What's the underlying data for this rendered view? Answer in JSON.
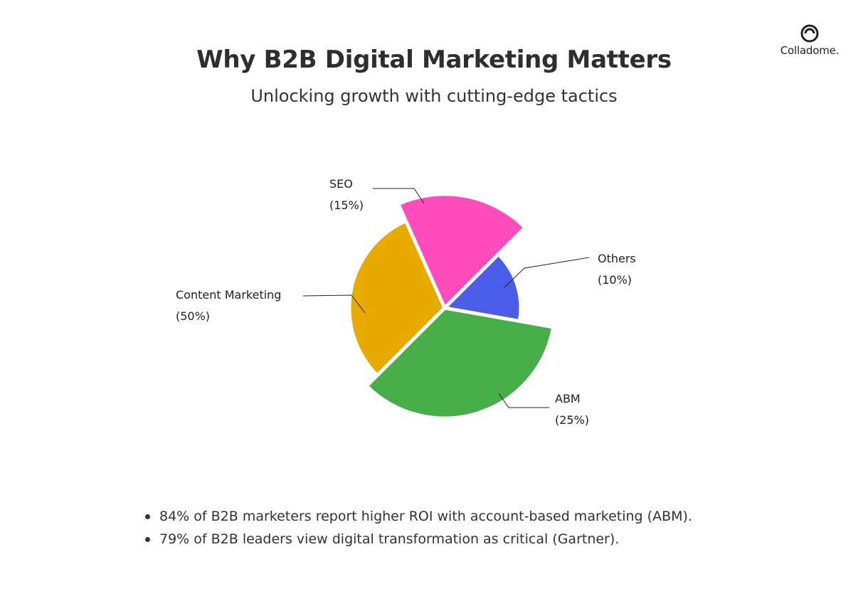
{
  "header": {
    "title": "Why B2B Digital Marketing Matters",
    "subtitle": "Unlocking growth with cutting-edge tactics"
  },
  "brand": {
    "name": "Colladome.",
    "icon": "colladome-logo-icon"
  },
  "chart_data": {
    "type": "pie",
    "title": "Why B2B Digital Marketing Matters",
    "subtitle": "Unlocking growth with cutting-edge tactics",
    "slices": [
      {
        "label": "Content Marketing",
        "value": 50,
        "value_label": "(50%)",
        "color": "#E9AA00",
        "exploded": true
      },
      {
        "label": "SEO",
        "value": 15,
        "value_label": "(15%)",
        "color": "#FF4CBD",
        "exploded": true
      },
      {
        "label": "Others",
        "value": 10,
        "value_label": "(10%)",
        "color": "#4A5CE8",
        "exploded": false
      },
      {
        "label": "ABM",
        "value": 25,
        "value_label": "(25%)",
        "color": "#46AE48",
        "exploded": true
      }
    ],
    "legend": "none"
  },
  "facts": [
    "84% of B2B marketers report higher ROI with account-based marketing (ABM).",
    "79% of B2B leaders view digital transformation as critical (Gartner)."
  ]
}
